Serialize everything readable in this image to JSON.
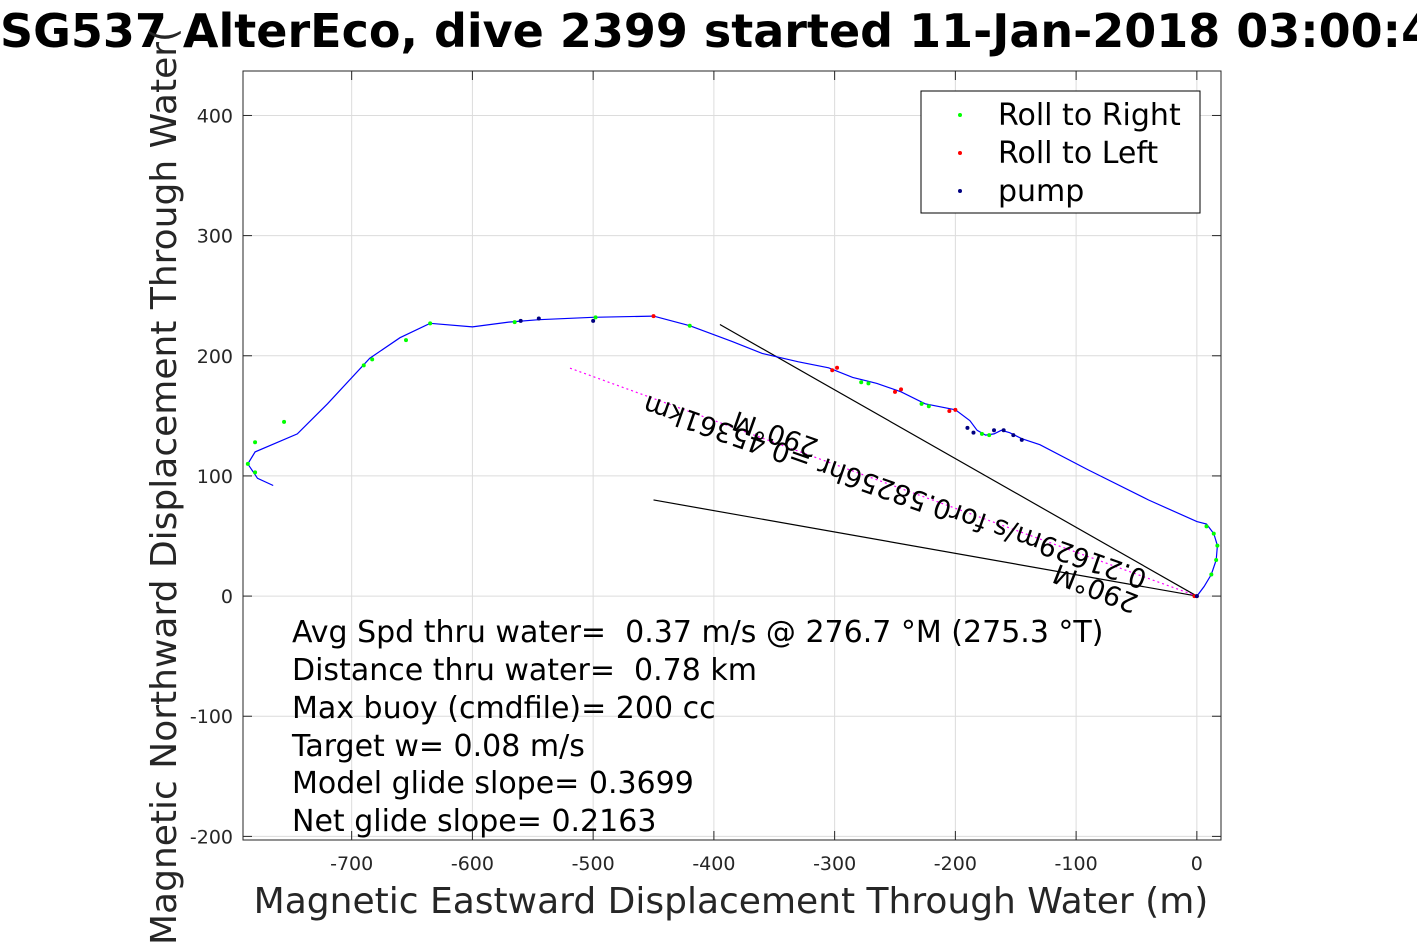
{
  "chart_data": {
    "type": "scatter",
    "title": "SG537 AlterEco, dive 2399 started 11-Jan-2018 03:00:4",
    "xlabel": "Magnetic Eastward Displacement Through Water (m)",
    "ylabel": "Magnetic Northward Displacement Through Water(",
    "xlim": [
      -790,
      20
    ],
    "ylim": [
      -203,
      437
    ],
    "grid": true,
    "legend_position": "top-right",
    "x_ticks": [
      -700,
      -600,
      -500,
      -400,
      -300,
      -200,
      -100,
      0
    ],
    "y_ticks": [
      -200,
      -100,
      0,
      100,
      200,
      300,
      400
    ],
    "legend": [
      "Roll to Right",
      "Roll to Left",
      "pump"
    ],
    "series": [
      {
        "name": "track",
        "color": "#0000ff",
        "points": [
          [
            0,
            0
          ],
          [
            6,
            8
          ],
          [
            12,
            18
          ],
          [
            16,
            30
          ],
          [
            17,
            42
          ],
          [
            14,
            52
          ],
          [
            8,
            60
          ],
          [
            0,
            62
          ],
          [
            -40,
            80
          ],
          [
            -90,
            105
          ],
          [
            -130,
            126
          ],
          [
            -145,
            131
          ],
          [
            -155,
            136
          ],
          [
            -162,
            138
          ],
          [
            -168,
            135
          ],
          [
            -175,
            134
          ],
          [
            -182,
            138
          ],
          [
            -188,
            146
          ],
          [
            -200,
            155
          ],
          [
            -225,
            160
          ],
          [
            -245,
            170
          ],
          [
            -265,
            177
          ],
          [
            -285,
            182
          ],
          [
            -305,
            190
          ],
          [
            -330,
            195
          ],
          [
            -360,
            202
          ],
          [
            -385,
            212
          ],
          [
            -420,
            225
          ],
          [
            -450,
            233
          ],
          [
            -500,
            232
          ],
          [
            -545,
            230
          ],
          [
            -570,
            228
          ],
          [
            -600,
            224
          ],
          [
            -635,
            227
          ],
          [
            -660,
            215
          ],
          [
            -685,
            198
          ],
          [
            -720,
            160
          ],
          [
            -745,
            135
          ],
          [
            -780,
            120
          ],
          [
            -786,
            110
          ],
          [
            -778,
            98
          ],
          [
            -765,
            92
          ]
        ]
      },
      {
        "name": "Roll to Right",
        "color": "#00ff00",
        "points": [
          [
            12,
            18
          ],
          [
            16,
            30
          ],
          [
            17,
            42
          ],
          [
            14,
            52
          ],
          [
            8,
            58
          ],
          [
            -172,
            134
          ],
          [
            -178,
            135
          ],
          [
            -222,
            158
          ],
          [
            -228,
            160
          ],
          [
            -272,
            177
          ],
          [
            -278,
            178
          ],
          [
            -420,
            225
          ],
          [
            -498,
            232
          ],
          [
            -565,
            228
          ],
          [
            -635,
            227
          ],
          [
            -655,
            213
          ],
          [
            -683,
            197
          ],
          [
            -690,
            192
          ],
          [
            -756,
            145
          ],
          [
            -780,
            128
          ],
          [
            -786,
            110
          ],
          [
            -780,
            103
          ]
        ]
      },
      {
        "name": "Roll to Left",
        "color": "#ff0000",
        "points": [
          [
            0,
            0
          ],
          [
            -2,
            0
          ],
          [
            -200,
            155
          ],
          [
            -205,
            154
          ],
          [
            -245,
            172
          ],
          [
            -250,
            170
          ],
          [
            -298,
            190
          ],
          [
            -302,
            188
          ],
          [
            -450,
            233
          ]
        ]
      },
      {
        "name": "pump",
        "color": "#000080",
        "points": [
          [
            0,
            0
          ],
          [
            -145,
            130
          ],
          [
            -152,
            134
          ],
          [
            -160,
            138
          ],
          [
            -168,
            138
          ],
          [
            -185,
            136
          ],
          [
            -190,
            140
          ],
          [
            -500,
            229
          ],
          [
            -545,
            231
          ],
          [
            -560,
            229
          ]
        ]
      }
    ],
    "annotations": [
      {
        "type": "line",
        "x": [
          0,
          -395
        ],
        "y": [
          0,
          226
        ]
      },
      {
        "type": "line",
        "x": [
          0,
          -450
        ],
        "y": [
          0,
          80
        ]
      },
      {
        "type": "magenta-line",
        "x": [
          0,
          -520
        ],
        "y": [
          0,
          190
        ]
      }
    ],
    "rotated_labels": [
      "290°M",
      "0.21629m/s for0.58256hr =0.45361km",
      "290°M"
    ],
    "text_block": [
      "Avg Spd thru water=  0.37 m/s @ 276.7 °M (275.3 °T)",
      "Distance thru water=  0.78 km",
      "Max buoy (cmdfile)= 200 cc",
      "Target w= 0.08 m/s",
      "Model glide slope= 0.3699",
      "Net glide slope= 0.2163"
    ]
  }
}
